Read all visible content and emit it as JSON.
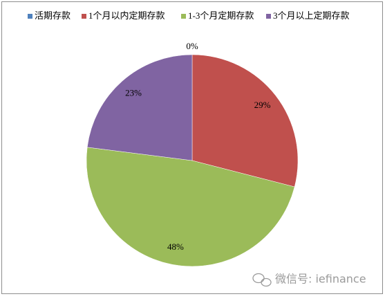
{
  "chart_data": {
    "type": "pie",
    "categories": [
      "活期存款",
      "1个月以内定期存款",
      "1-3个月定期存款",
      "3个月以上定期存款"
    ],
    "values": [
      0,
      29,
      48,
      23
    ],
    "value_labels": [
      "0%",
      "29%",
      "48%",
      "23%"
    ],
    "colors": [
      "#4f81bd",
      "#c0504d",
      "#9bbb59",
      "#8064a2"
    ],
    "legend": "top",
    "annotations": [
      "微信号: iefinance"
    ]
  }
}
